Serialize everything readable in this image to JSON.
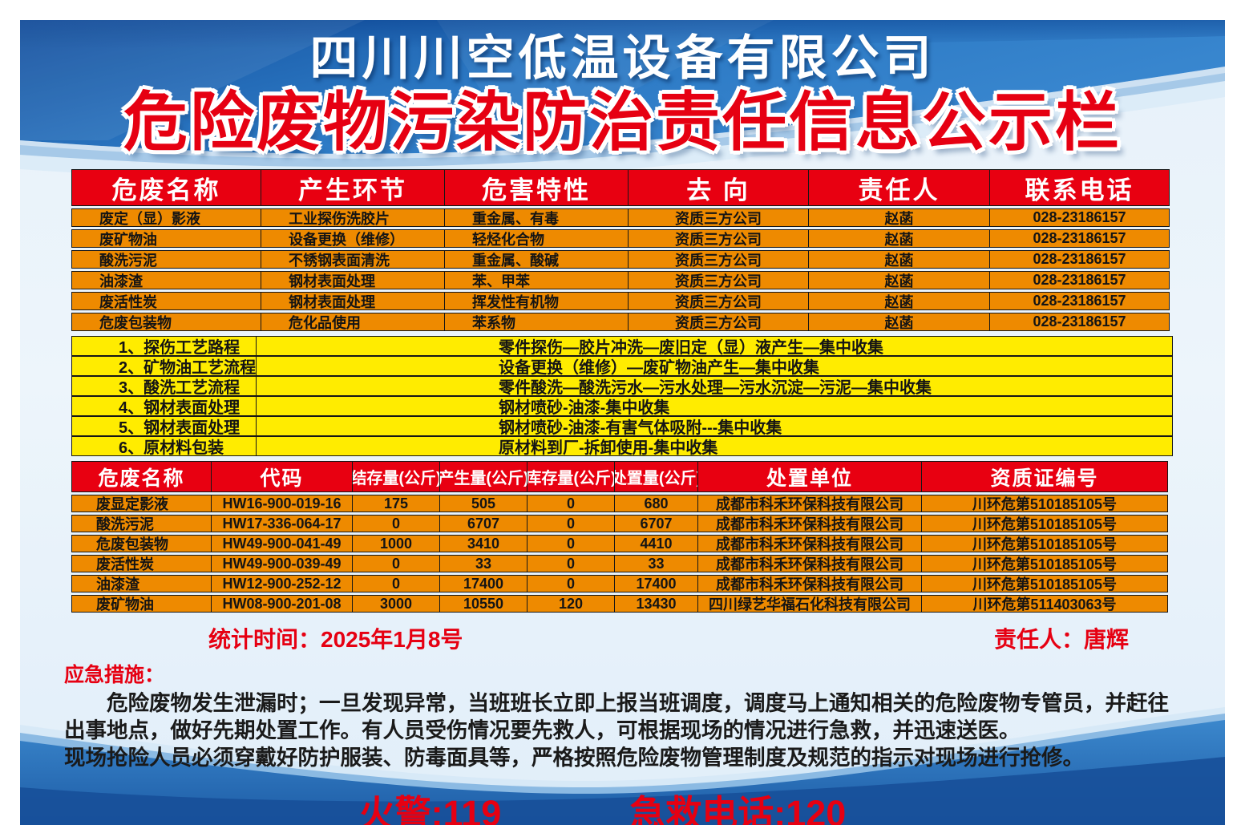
{
  "page": {
    "company_title": "四川川空低温设备有限公司",
    "main_title": "危险废物污染防治责任信息公示栏"
  },
  "colors": {
    "title_red": "#e60012",
    "header_red": "#e80011",
    "row_orange": "#ee8a00",
    "row_yellow": "#ffec00",
    "deep_blue": "#15519f",
    "wave_blue": "#2f7cc2",
    "light_blue_bg": "#e7f1fa"
  },
  "waste_table": {
    "headers": [
      "危废名称",
      "产生环节",
      "危害特性",
      "去 向",
      "责任人",
      "联系电话"
    ],
    "rows": [
      [
        "废定（显）影液",
        "工业探伤洗胶片",
        "重金属、有毒",
        "资质三方公司",
        "赵菡",
        "028-23186157"
      ],
      [
        "废矿物油",
        "设备更换（维修）",
        "轻烃化合物",
        "资质三方公司",
        "赵菡",
        "028-23186157"
      ],
      [
        "酸洗污泥",
        "不锈钢表面清洗",
        "重金属、酸碱",
        "资质三方公司",
        "赵菡",
        "028-23186157"
      ],
      [
        "油漆渣",
        "钢材表面处理",
        "苯、甲苯",
        "资质三方公司",
        "赵菡",
        "028-23186157"
      ],
      [
        "废活性炭",
        "钢材表面处理",
        "挥发性有机物",
        "资质三方公司",
        "赵菡",
        "028-23186157"
      ],
      [
        "危废包装物",
        "危化品使用",
        "苯系物",
        "资质三方公司",
        "赵菡",
        "028-23186157"
      ]
    ]
  },
  "process_table": {
    "rows": [
      {
        "label": "1、探伤工艺路程",
        "flow": "零件探伤—胶片冲洗—废旧定（显）液产生—集中收集"
      },
      {
        "label": "2、矿物油工艺流程",
        "flow": "设备更换（维修）—废矿物油产生—集中收集"
      },
      {
        "label": "3、酸洗工艺流程",
        "flow": "零件酸洗—酸洗污水—污水处理—污水沉淀—污泥—集中收集"
      },
      {
        "label": "4、钢材表面处理",
        "flow": "钢材喷砂-油漆-集中收集"
      },
      {
        "label": "5、钢材表面处理",
        "flow": "钢材喷砂-油漆-有害气体吸附---集中收集"
      },
      {
        "label": "6、原材料包装",
        "flow": "原材料到厂-拆卸使用-集中收集"
      }
    ]
  },
  "quantity_table": {
    "headers": [
      "危废名称",
      "代码",
      "结存量(公斤)",
      "产生量(公斤)",
      "库存量(公斤)",
      "处置量(公斤)",
      "处置单位",
      "资质证编号"
    ],
    "rows": [
      [
        "废显定影液",
        "HW16-900-019-16",
        "175",
        "505",
        "0",
        "680",
        "成都市科禾环保科技有限公司",
        "川环危第510185105号"
      ],
      [
        "酸洗污泥",
        "HW17-336-064-17",
        "0",
        "6707",
        "0",
        "6707",
        "成都市科禾环保科技有限公司",
        "川环危第510185105号"
      ],
      [
        "危废包装物",
        "HW49-900-041-49",
        "1000",
        "3410",
        "0",
        "4410",
        "成都市科禾环保科技有限公司",
        "川环危第510185105号"
      ],
      [
        "废活性炭",
        "HW49-900-039-49",
        "0",
        "33",
        "0",
        "33",
        "成都市科禾环保科技有限公司",
        "川环危第510185105号"
      ],
      [
        "油漆渣",
        "HW12-900-252-12",
        "0",
        "17400",
        "0",
        "17400",
        "成都市科禾环保科技有限公司",
        "川环危第510185105号"
      ],
      [
        "废矿物油",
        "HW08-900-201-08",
        "3000",
        "10550",
        "120",
        "13430",
        "四川绿艺华福石化科技有限公司",
        "川环危第511403063号"
      ]
    ]
  },
  "footer": {
    "stats_time": "统计时间：2025年1月8号",
    "responsible": "责任人：唐辉",
    "emergency_title": "应急措施：",
    "emergency_lines": [
      "危险废物发生泄漏时；一旦发现异常，当班班长立即上报当班调度，调度马上通知相关的危险废物专管员，并赶往出事地点，做好先期处置工作。有人员受伤情况要先救人，可根据现场的情况进行急救，并迅速送医。",
      "现场抢险人员必须穿戴好防护服装、防毒面具等，严格按照危险废物管理制度及规范的指示对现场进行抢修。"
    ],
    "fire_phone": "火警:119",
    "medical_phone": "急救电话:120"
  }
}
